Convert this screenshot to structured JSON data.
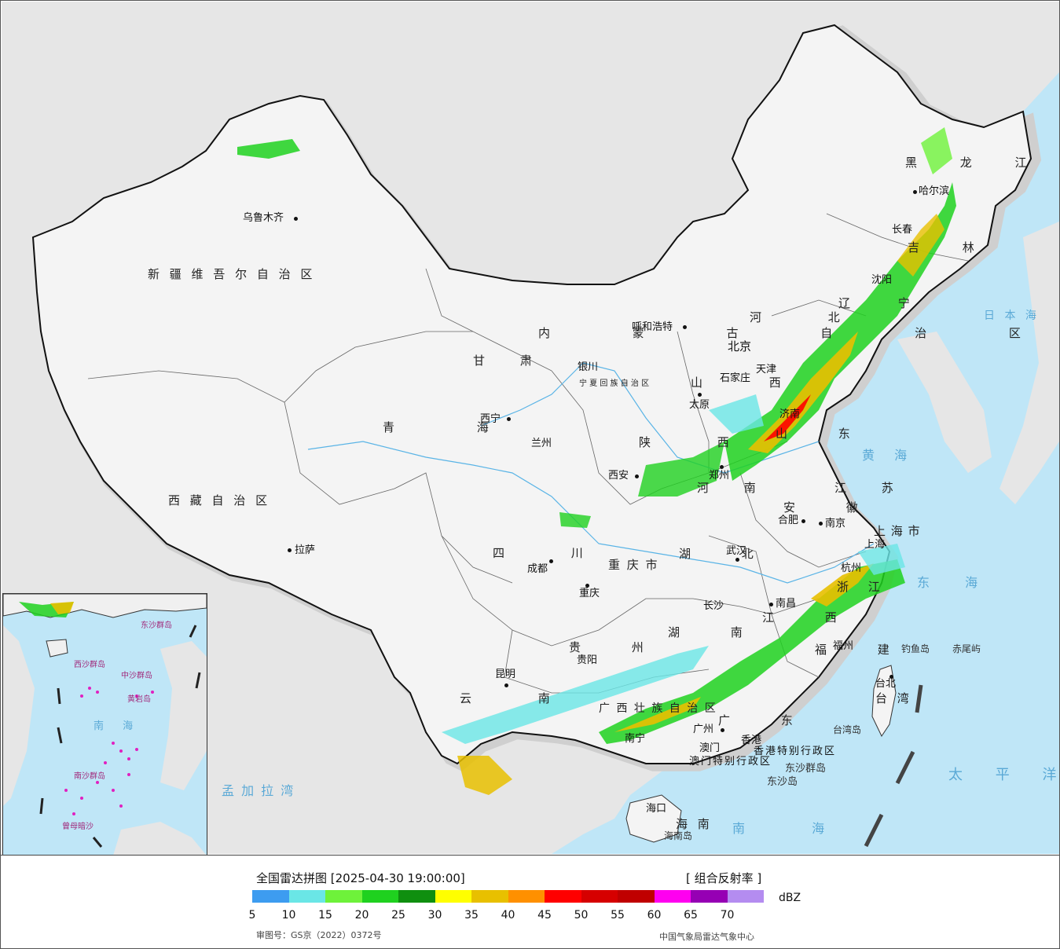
{
  "map": {
    "provinces": [
      {
        "name": "新 疆 维 吾 尔 自 治 区"
      },
      {
        "name": "西 藏 自 治 区"
      },
      {
        "name": "青 海"
      },
      {
        "name": "甘 肃"
      },
      {
        "name": "四 川"
      },
      {
        "name": "云 南"
      },
      {
        "name": "内 蒙 古 自 治 区"
      },
      {
        "name": "黑 龙 江"
      },
      {
        "name": "吉 林"
      },
      {
        "name": "辽 宁"
      },
      {
        "name": "河 北"
      },
      {
        "name": "山 西"
      },
      {
        "name": "陕 西"
      },
      {
        "name": "河 南"
      },
      {
        "name": "山 东"
      },
      {
        "name": "江 苏"
      },
      {
        "name": "安 徽"
      },
      {
        "name": "湖 北"
      },
      {
        "name": "湖 南"
      },
      {
        "name": "江 西"
      },
      {
        "name": "浙 江"
      },
      {
        "name": "福 建"
      },
      {
        "name": "贵 州"
      },
      {
        "name": "广 东"
      },
      {
        "name": "广 西 壮 族 自 治 区"
      },
      {
        "name": "海 南"
      },
      {
        "name": "台 湾"
      },
      {
        "name": "重 庆 市"
      },
      {
        "name": "上 海 市"
      },
      {
        "name": "宁 夏 回 族 自 治 区"
      }
    ],
    "cities": [
      {
        "name": "乌鲁木齐"
      },
      {
        "name": "拉萨"
      },
      {
        "name": "西宁"
      },
      {
        "name": "兰州"
      },
      {
        "name": "成都"
      },
      {
        "name": "重庆"
      },
      {
        "name": "贵阳"
      },
      {
        "name": "昆明"
      },
      {
        "name": "南宁"
      },
      {
        "name": "广州"
      },
      {
        "name": "香港"
      },
      {
        "name": "澳门"
      },
      {
        "name": "海口"
      },
      {
        "name": "长沙"
      },
      {
        "name": "南昌"
      },
      {
        "name": "福州"
      },
      {
        "name": "台北"
      },
      {
        "name": "杭州"
      },
      {
        "name": "上海"
      },
      {
        "name": "南京"
      },
      {
        "name": "合肥"
      },
      {
        "name": "武汉"
      },
      {
        "name": "郑州"
      },
      {
        "name": "西安"
      },
      {
        "name": "银川"
      },
      {
        "name": "呼和浩特"
      },
      {
        "name": "太原"
      },
      {
        "name": "石家庄"
      },
      {
        "name": "北京"
      },
      {
        "name": "天津"
      },
      {
        "name": "济南"
      },
      {
        "name": "沈阳"
      },
      {
        "name": "长春"
      },
      {
        "name": "哈尔滨"
      }
    ],
    "special_regions": [
      {
        "name": "香港特别行政区"
      },
      {
        "name": "澳门特别行政区"
      }
    ],
    "seas": [
      {
        "name": "日 本 海"
      },
      {
        "name": "黄 海"
      },
      {
        "name": "东 海"
      },
      {
        "name": "南 海"
      },
      {
        "name": "太 平 洋"
      },
      {
        "name": "孟 加 拉 湾"
      }
    ],
    "islands": [
      {
        "name": "钓鱼岛"
      },
      {
        "name": "赤尾屿"
      },
      {
        "name": "台湾岛"
      },
      {
        "name": "东沙群岛"
      },
      {
        "name": "东沙岛"
      },
      {
        "name": "海南岛"
      }
    ],
    "inset": {
      "labels": [
        {
          "name": "南 海"
        },
        {
          "name": "中沙群岛"
        },
        {
          "name": "南沙群岛"
        },
        {
          "name": "西沙群岛"
        },
        {
          "name": "东沙群岛"
        },
        {
          "name": "曾母暗沙"
        },
        {
          "name": "黄岩岛"
        }
      ]
    }
  },
  "legend": {
    "title": "全国雷达拼图 [2025-04-30 19:00:00]",
    "product": "[ 组合反射率 ]",
    "unit": "dBZ",
    "colors": [
      "#3d9cf0",
      "#6ae6e6",
      "#6ef23a",
      "#1fd11f",
      "#0f8f0f",
      "#ffff00",
      "#e8c000",
      "#ff9000",
      "#ff0000",
      "#d60000",
      "#c00000",
      "#ff00f0",
      "#9600b4",
      "#b48cf0"
    ],
    "ticks": [
      "5",
      "10",
      "15",
      "20",
      "25",
      "30",
      "35",
      "40",
      "45",
      "50",
      "55",
      "60",
      "65",
      "70"
    ],
    "approval": "审图号：GS京（2022）0372号",
    "credit": "中国气象局雷达气象中心"
  }
}
